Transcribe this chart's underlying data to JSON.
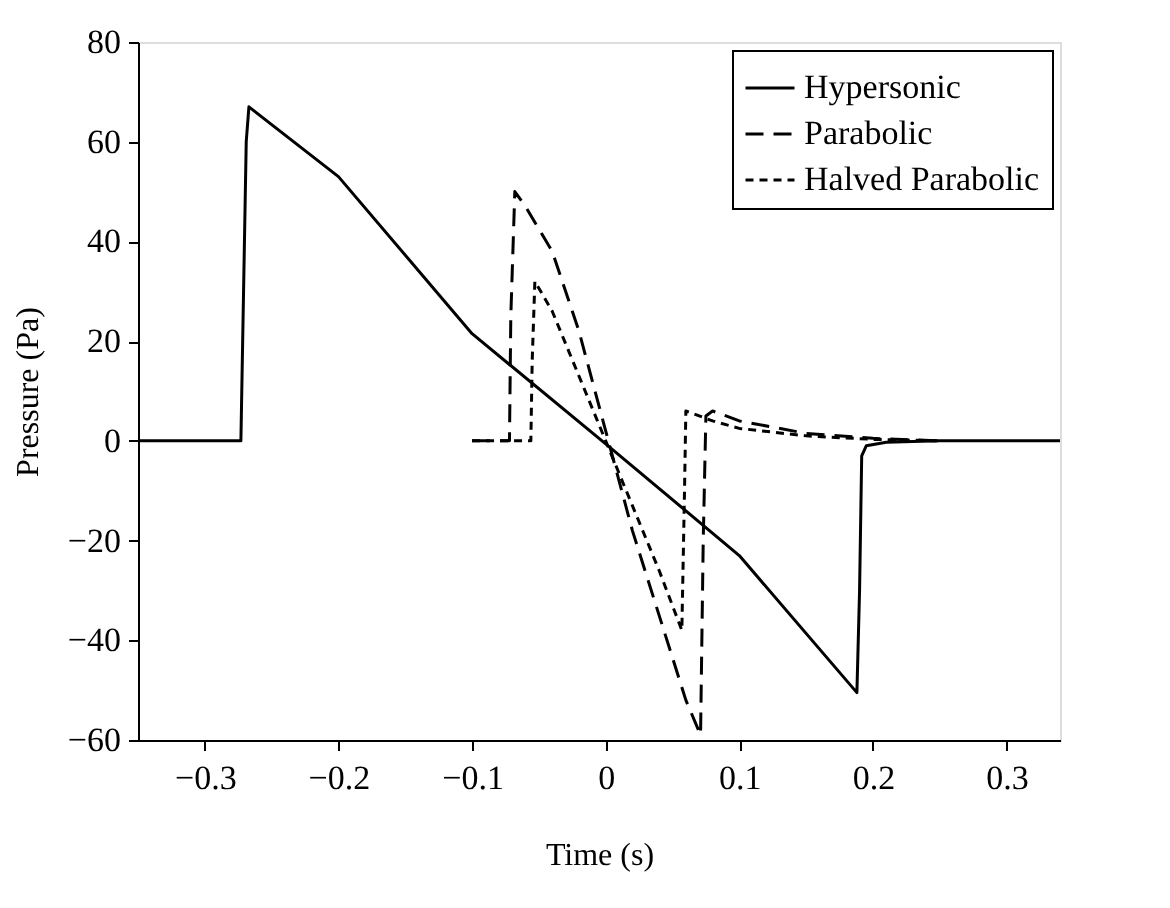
{
  "chart_data": {
    "type": "line",
    "xlabel": "Time (s)",
    "ylabel": "Pressure (Pa)",
    "xlim": [
      -0.35,
      0.34
    ],
    "xticks": [
      {
        "value": -0.3,
        "label": "−0.3"
      },
      {
        "value": -0.2,
        "label": "−0.2"
      },
      {
        "value": -0.1,
        "label": "−0.1"
      },
      0,
      0.1,
      0.2,
      0.3
    ],
    "ylim": [
      -60,
      80
    ],
    "yticks": [
      {
        "value": -60,
        "label": "−60"
      },
      {
        "value": -40,
        "label": "−40"
      },
      {
        "value": -20,
        "label": "−20"
      },
      0,
      20,
      40,
      60,
      80
    ],
    "grid": false,
    "legend": "top right",
    "marker": "none",
    "series": [
      {
        "name": "Hypersonic",
        "color": "#000000",
        "line_style": "solid",
        "x": [
          -0.35,
          -0.273,
          -0.271,
          -0.269,
          -0.267,
          -0.2,
          -0.1,
          0,
          0.1,
          0.188,
          0.19,
          0.1916,
          0.195,
          0.21,
          0.25,
          0.34
        ],
        "values": [
          0,
          0,
          30,
          60,
          67,
          53,
          21.5,
          -0.6,
          -23,
          -50.5,
          -30,
          -3,
          -1,
          -0.3,
          0,
          0
        ]
      },
      {
        "name": "Parabolic",
        "color": "#000000",
        "line_style": "dashed",
        "x": [
          -0.1,
          -0.072,
          -0.071,
          -0.068,
          -0.06,
          -0.04,
          -0.02,
          0,
          0.02,
          0.04,
          0.06,
          0.071,
          0.073,
          0.075,
          0.08,
          0.1,
          0.15,
          0.2,
          0.25
        ],
        "values": [
          0,
          0,
          25,
          50,
          47,
          38,
          22,
          2,
          -18,
          -35,
          -52,
          -59,
          -20,
          5,
          6,
          4,
          1.5,
          0.5,
          0
        ]
      },
      {
        "name": "Halved Parabolic",
        "color": "#000000",
        "line_style": "dotted",
        "x": [
          -0.1,
          -0.056,
          -0.055,
          -0.053,
          -0.04,
          -0.02,
          0,
          0.02,
          0.04,
          0.057,
          0.059,
          0.06,
          0.065,
          0.08,
          0.1,
          0.15,
          0.2,
          0.25
        ],
        "values": [
          0,
          0,
          16,
          32,
          26,
          13,
          0,
          -13,
          -26,
          -38,
          -10,
          6,
          5.5,
          4,
          2.5,
          1,
          0.3,
          0
        ]
      }
    ]
  }
}
